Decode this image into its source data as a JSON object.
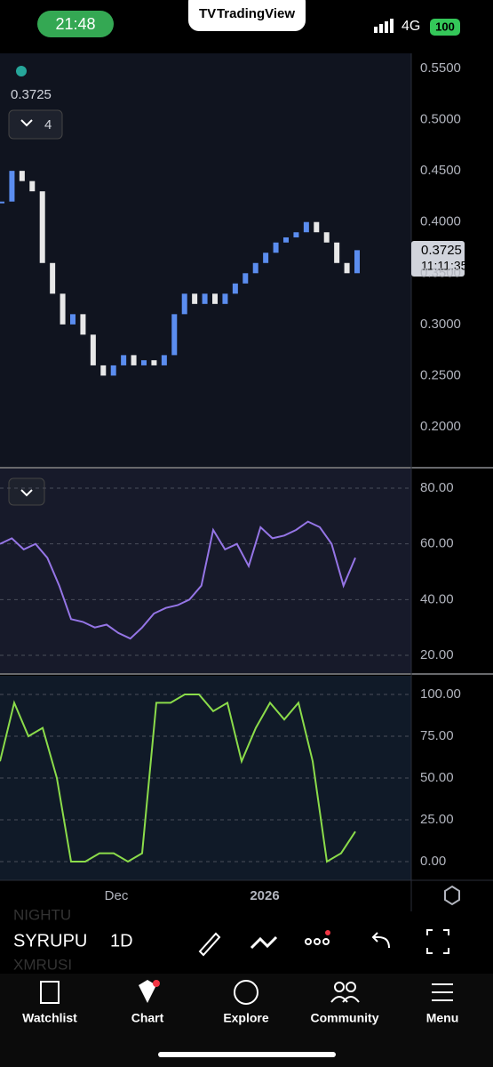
{
  "status_bar": {
    "time": "21:48",
    "app": "TradingView",
    "network": "4G",
    "battery": "100"
  },
  "price_panel": {
    "last_price": "0.3725",
    "indicator_count": "4",
    "price_tag": "0.3725",
    "countdown": "11:11:35",
    "yticks": [
      {
        "value": 0.55,
        "label": "0.5500"
      },
      {
        "value": 0.5,
        "label": "0.5000"
      },
      {
        "value": 0.45,
        "label": "0.4500"
      },
      {
        "value": 0.4,
        "label": "0.4000"
      },
      {
        "value": 0.35,
        "label": "0.3500"
      },
      {
        "value": 0.3,
        "label": "0.3000"
      },
      {
        "value": 0.25,
        "label": "0.2500"
      },
      {
        "value": 0.2,
        "label": "0.2000"
      }
    ],
    "closes": [
      0.42,
      0.45,
      0.44,
      0.43,
      0.36,
      0.33,
      0.3,
      0.31,
      0.29,
      0.26,
      0.25,
      0.26,
      0.27,
      0.26,
      0.265,
      0.26,
      0.27,
      0.31,
      0.33,
      0.32,
      0.33,
      0.32,
      0.33,
      0.34,
      0.35,
      0.36,
      0.37,
      0.38,
      0.385,
      0.39,
      0.4,
      0.39,
      0.38,
      0.36,
      0.35,
      0.3725
    ]
  },
  "rsi_panel": {
    "yticks": [
      {
        "value": 80,
        "label": "80.00"
      },
      {
        "value": 60,
        "label": "60.00"
      },
      {
        "value": 40,
        "label": "40.00"
      },
      {
        "value": 20,
        "label": "20.00"
      }
    ],
    "values": [
      60,
      62,
      58,
      60,
      55,
      45,
      33,
      32,
      30,
      31,
      28,
      26,
      30,
      35,
      37,
      38,
      40,
      45,
      65,
      58,
      60,
      52,
      66,
      62,
      63,
      65,
      68,
      66,
      60,
      45,
      55
    ]
  },
  "stoch_panel": {
    "yticks": [
      {
        "value": 100,
        "label": "100.00"
      },
      {
        "value": 75,
        "label": "75.00"
      },
      {
        "value": 50,
        "label": "50.00"
      },
      {
        "value": 25,
        "label": "25.00"
      },
      {
        "value": 0,
        "label": "0.00"
      }
    ],
    "values": [
      60,
      95,
      75,
      80,
      50,
      0,
      0,
      5,
      5,
      0,
      5,
      95,
      95,
      100,
      100,
      90,
      95,
      60,
      80,
      95,
      85,
      95,
      60,
      0,
      5,
      18
    ]
  },
  "time_axis": [
    "Dec",
    "2026"
  ],
  "toolbar": {
    "symbol": "SYRUPU",
    "interval": "1D",
    "ghost_above": "NIGHTU",
    "ghost_below": "XMRUSI"
  },
  "nav": [
    "Watchlist",
    "Chart",
    "Explore",
    "Community",
    "Menu"
  ]
}
